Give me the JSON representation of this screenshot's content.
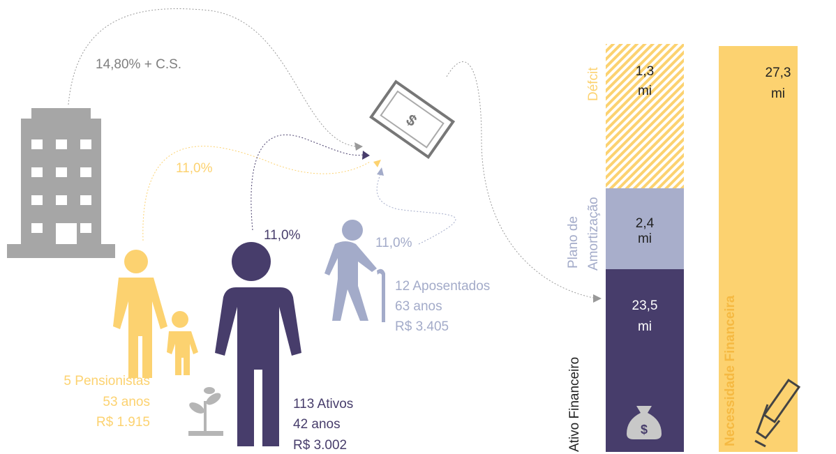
{
  "flows": {
    "company": "14,80% + C.S.",
    "pensioners": "11,0%",
    "active": "11,0%",
    "retired": "11,0%"
  },
  "groups": {
    "pensioners": [
      "5 Pensionistas",
      "53 anos",
      "R$ 1.915"
    ],
    "active": [
      "113 Ativos",
      "42 anos",
      "R$ 3.002"
    ],
    "retired": [
      "12 Aposentados",
      "63 anos",
      "R$ 3.405"
    ]
  },
  "balance": {
    "deficit": {
      "label": "Défcit",
      "amount": [
        "1,3",
        "mi"
      ]
    },
    "amortization": {
      "label": [
        "Plano de",
        "Amortização"
      ],
      "amount": [
        "2,4",
        "mi"
      ]
    },
    "assets": {
      "label": "Ativo Financeiro",
      "amount": [
        "23,5",
        "mi"
      ]
    },
    "need": {
      "label": "Necessidade Financeira",
      "amount": [
        "27,3",
        "mi"
      ]
    }
  }
}
